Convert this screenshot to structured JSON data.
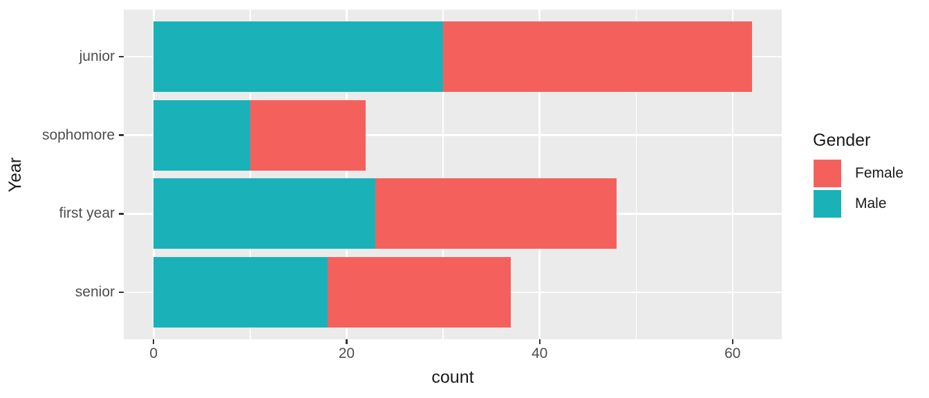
{
  "chart_data": {
    "type": "bar",
    "orientation": "horizontal",
    "stacked": true,
    "title": "",
    "xlabel": "count",
    "ylabel": "Year",
    "legend_title": "Gender",
    "legend_position": "right",
    "categories": [
      "junior",
      "sophomore",
      "first year",
      "senior"
    ],
    "series": [
      {
        "name": "Male",
        "color": "#1AB2B8",
        "values": [
          30,
          10,
          23,
          18
        ]
      },
      {
        "name": "Female",
        "color": "#F4615D",
        "values": [
          32,
          12,
          25,
          19
        ]
      }
    ],
    "legend_entries": [
      {
        "label": "Female",
        "color": "#F4615D"
      },
      {
        "label": "Male",
        "color": "#1AB2B8"
      }
    ],
    "x_major_ticks": [
      0,
      20,
      40,
      60
    ],
    "x_minor_gridlines": [
      10,
      30,
      50
    ],
    "xlim": [
      -3.1,
      65.1
    ],
    "grid": true,
    "panel_background": "#EBEBEB",
    "gridline_color": "#FFFFFF",
    "tick_mark_color": "#333333",
    "tick_label_color": "#4D4D4D",
    "axis_title_color": "#1A1A1A"
  }
}
